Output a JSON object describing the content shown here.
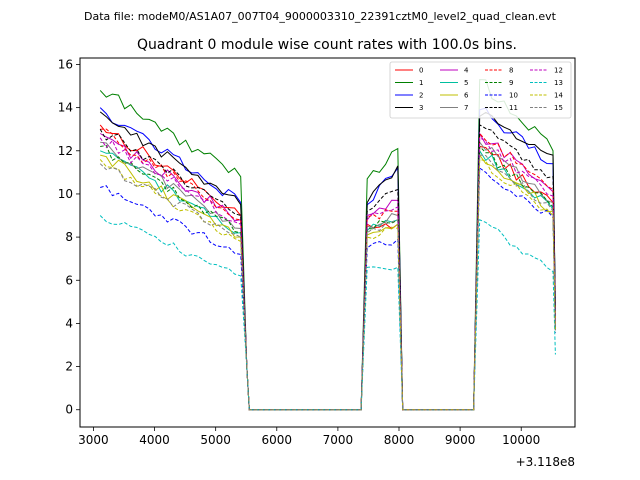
{
  "chart_data": {
    "type": "line",
    "suptitle": "Data file: modeM0/AS1A07_007T04_9000003310_22391cztM0_level2_quad_clean.evt",
    "title": "Quadrant 0 module wise count rates with 100.0s bins.",
    "xlabel": "",
    "ylabel": "",
    "x_offset_label": "+3.118e8",
    "xlim": [
      2780,
      10880
    ],
    "ylim": [
      -0.8,
      16.3
    ],
    "xticks": [
      3000,
      4000,
      5000,
      6000,
      7000,
      8000,
      9000,
      10000
    ],
    "yticks": [
      0,
      2,
      4,
      6,
      8,
      10,
      12,
      14,
      16
    ],
    "legend_position": "top-right",
    "segments": [
      {
        "start": 3110,
        "end": 5450
      },
      {
        "start": 7480,
        "end": 7960
      },
      {
        "start": 9320,
        "end": 10500
      }
    ],
    "series": [
      {
        "name": "0",
        "color": "#ff0000",
        "style": "solid",
        "starts": [
          13.2,
          8.6,
          12.2
        ],
        "ends": [
          9.0,
          8.6,
          9.6
        ]
      },
      {
        "name": "1",
        "color": "#008000",
        "style": "solid",
        "starts": [
          14.8,
          10.7,
          15.3
        ],
        "ends": [
          10.8,
          12.1,
          12.0
        ]
      },
      {
        "name": "2",
        "color": "#0000ff",
        "style": "solid",
        "starts": [
          14.0,
          9.5,
          13.9
        ],
        "ends": [
          9.6,
          11.2,
          11.4
        ]
      },
      {
        "name": "3",
        "color": "#000000",
        "style": "solid",
        "starts": [
          13.8,
          9.6,
          13.6
        ],
        "ends": [
          9.5,
          11.3,
          11.8
        ]
      },
      {
        "name": "4",
        "color": "#bf00bf",
        "style": "solid",
        "starts": [
          12.8,
          9.0,
          12.8
        ],
        "ends": [
          8.8,
          9.7,
          10.1
        ]
      },
      {
        "name": "5",
        "color": "#00bf9f",
        "style": "solid",
        "starts": [
          12.0,
          8.3,
          12.0
        ],
        "ends": [
          8.2,
          8.8,
          9.3
        ]
      },
      {
        "name": "6",
        "color": "#bfbf00",
        "style": "solid",
        "starts": [
          11.8,
          8.1,
          11.8
        ],
        "ends": [
          8.0,
          8.6,
          9.2
        ]
      },
      {
        "name": "7",
        "color": "#808080",
        "style": "solid",
        "starts": [
          12.4,
          8.5,
          12.4
        ],
        "ends": [
          8.4,
          9.0,
          9.6
        ]
      },
      {
        "name": "8",
        "color": "#ff0000",
        "style": "dashed",
        "starts": [
          13.0,
          8.9,
          12.8
        ],
        "ends": [
          8.8,
          9.2,
          10.2
        ]
      },
      {
        "name": "9",
        "color": "#008000",
        "style": "dashed",
        "starts": [
          12.2,
          8.4,
          12.2
        ],
        "ends": [
          8.2,
          8.8,
          9.4
        ]
      },
      {
        "name": "10",
        "color": "#0000ff",
        "style": "dashed",
        "starts": [
          10.3,
          7.5,
          11.2
        ],
        "ends": [
          7.2,
          7.9,
          8.9
        ]
      },
      {
        "name": "11",
        "color": "#000000",
        "style": "dashed",
        "starts": [
          13.0,
          9.2,
          13.2
        ],
        "ends": [
          9.0,
          10.2,
          10.8
        ]
      },
      {
        "name": "12",
        "color": "#bf00bf",
        "style": "dashed",
        "starts": [
          12.6,
          8.8,
          12.6
        ],
        "ends": [
          8.6,
          9.4,
          9.9
        ]
      },
      {
        "name": "13",
        "color": "#00bfbf",
        "style": "dashed",
        "starts": [
          9.0,
          6.6,
          8.8
        ],
        "ends": [
          6.2,
          6.6,
          6.4
        ]
      },
      {
        "name": "14",
        "color": "#bfbf00",
        "style": "dashed",
        "starts": [
          11.6,
          8.0,
          11.6
        ],
        "ends": [
          7.8,
          8.4,
          9.0
        ]
      },
      {
        "name": "15",
        "color": "#808080",
        "style": "dashed",
        "starts": [
          11.4,
          8.2,
          11.8
        ],
        "ends": [
          8.0,
          8.8,
          9.2
        ]
      }
    ]
  }
}
